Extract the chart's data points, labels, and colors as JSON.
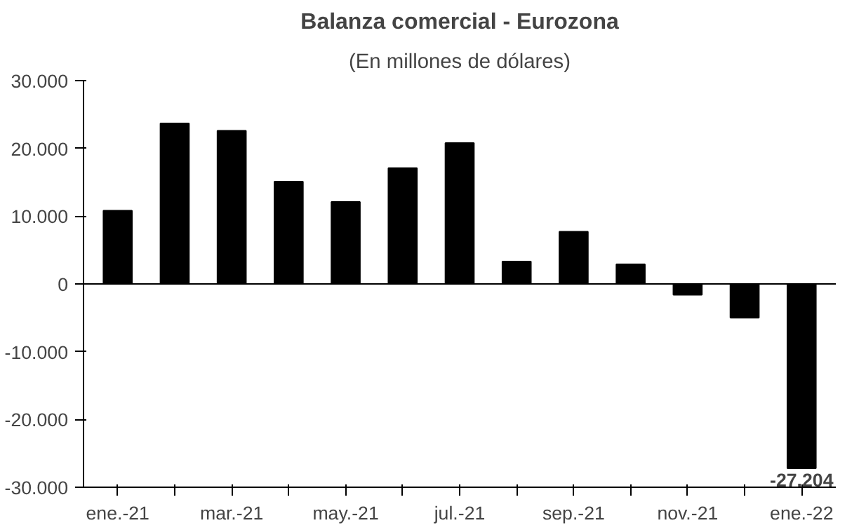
{
  "chart_data": {
    "type": "bar",
    "title": "Balanza comercial - Eurozona",
    "subtitle": "(En millones de dólares)",
    "categories": [
      "ene.-21",
      null,
      "mar.-21",
      null,
      "may.-21",
      null,
      "jul.-21",
      null,
      "sep.-21",
      null,
      "nov.-21",
      null,
      "ene.-22"
    ],
    "values": [
      10800,
      23700,
      22600,
      15100,
      12100,
      17100,
      20800,
      3300,
      7700,
      2900,
      -1600,
      -5000,
      -27204
    ],
    "value_labels": [
      null,
      null,
      null,
      null,
      null,
      null,
      null,
      null,
      null,
      null,
      null,
      null,
      "-27.204"
    ],
    "color": "#000000",
    "ylim": [
      -30000,
      30000
    ],
    "yticks": [
      {
        "value": -30000,
        "label": "-30.000"
      },
      {
        "value": -20000,
        "label": "-20.000"
      },
      {
        "value": -10000,
        "label": "-10.000"
      },
      0,
      {
        "value": 10000,
        "label": "10.000"
      },
      {
        "value": 20000,
        "label": "20.000"
      },
      {
        "value": 30000,
        "label": "30.000"
      }
    ]
  }
}
